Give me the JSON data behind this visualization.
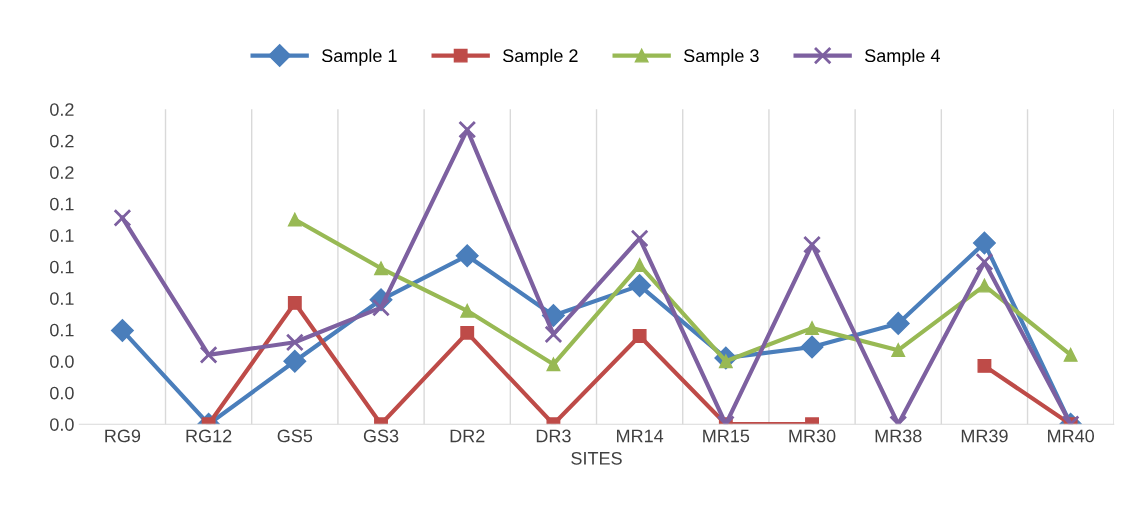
{
  "chart_data": {
    "type": "line",
    "xlabel": "SITES",
    "categories": [
      "RG9",
      "RG12",
      "GS5",
      "GS3",
      "DR2",
      "DR3",
      "MR14",
      "MR15",
      "MR30",
      "MR38",
      "MR39",
      "MR40"
    ],
    "series": [
      {
        "name": "Sample 1",
        "color": "#4a7ebb",
        "marker": "diamond",
        "values": [
          0.0595,
          0,
          0.04,
          0.079,
          0.107,
          0.069,
          0.088,
          0.042,
          0.049,
          0.064,
          0.115,
          0
        ]
      },
      {
        "name": "Sample 2",
        "color": "#be4b48",
        "marker": "square",
        "values": [
          null,
          0,
          0.077,
          0,
          0.058,
          0,
          0.056,
          0,
          0,
          null,
          0.037,
          0
        ]
      },
      {
        "name": "Sample 3",
        "color": "#98b954",
        "marker": "triangle",
        "values": [
          null,
          null,
          0.13,
          0.099,
          0.072,
          0.038,
          0.101,
          0.04,
          0.061,
          0.047,
          0.088,
          0.044
        ]
      },
      {
        "name": "Sample 4",
        "color": "#7d60a0",
        "marker": "cross",
        "values": [
          0.131,
          0.044,
          0.052,
          0.074,
          0.187,
          0.057,
          0.118,
          0,
          0.114,
          0,
          0.103,
          0
        ]
      }
    ],
    "ylim": [
      0,
      0.2
    ],
    "yticks": [
      {
        "value": 0,
        "label": "0.0"
      },
      {
        "value": 0.02,
        "label": "0.0"
      },
      {
        "value": 0.04,
        "label": "0.0"
      },
      {
        "value": 0.06,
        "label": "0.1"
      },
      {
        "value": 0.08,
        "label": "0.1"
      },
      {
        "value": 0.1,
        "label": "0.1"
      },
      {
        "value": 0.12,
        "label": "0.1"
      },
      {
        "value": 0.14,
        "label": "0.1"
      },
      {
        "value": 0.16,
        "label": "0.2"
      },
      {
        "value": 0.18,
        "label": "0.2"
      },
      {
        "value": 0.2,
        "label": "0.2"
      }
    ],
    "grid": "x",
    "legend": "top",
    "line_style": "solid"
  }
}
